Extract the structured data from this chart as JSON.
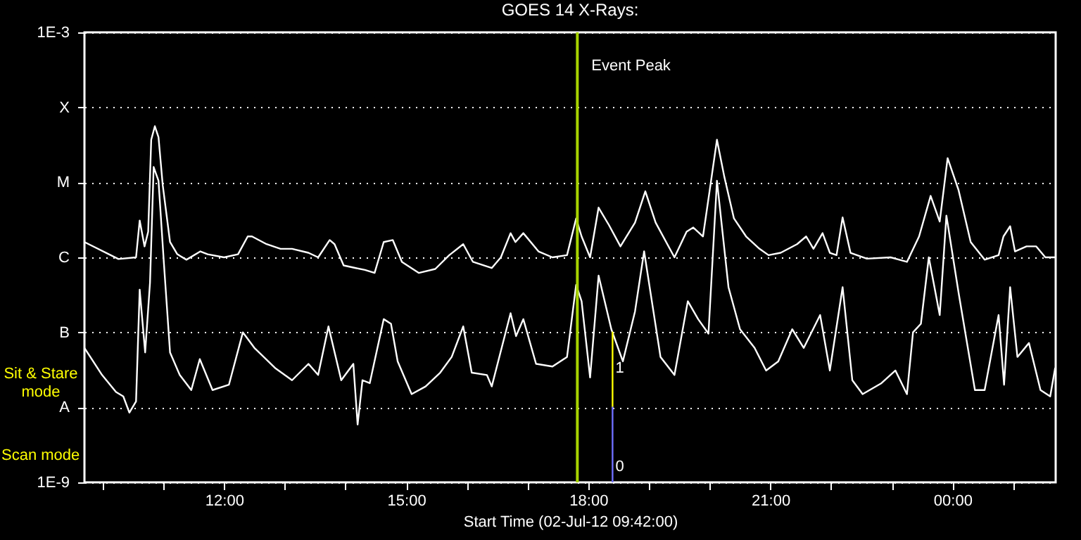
{
  "chart_data": {
    "type": "line",
    "title": "GOES 14 X-Rays:",
    "xlabel": "Start Time (02-Jul-12 09:42:00)",
    "log": true,
    "grid": "y",
    "line_style": "solid",
    "xlim": [
      9.7,
      25.7
    ],
    "xticks": [
      {
        "value": 10,
        "label": null
      },
      {
        "value": 11,
        "label": null
      },
      {
        "value": 12,
        "label": "12:00"
      },
      {
        "value": 13,
        "label": null
      },
      {
        "value": 14,
        "label": null
      },
      {
        "value": 15,
        "label": "15:00"
      },
      {
        "value": 16,
        "label": null
      },
      {
        "value": 17,
        "label": null
      },
      {
        "value": 18,
        "label": "18:00"
      },
      {
        "value": 19,
        "label": null
      },
      {
        "value": 20,
        "label": null
      },
      {
        "value": 21,
        "label": "21:00"
      },
      {
        "value": 22,
        "label": null
      },
      {
        "value": 23,
        "label": null
      },
      {
        "value": 24,
        "label": "00:00"
      },
      {
        "value": 25,
        "label": null
      }
    ],
    "ylim": [
      1e-09,
      0.001
    ],
    "yticks": [
      {
        "value": 1e-09,
        "label": "1E-9"
      },
      {
        "value": 1e-08,
        "label": "A"
      },
      {
        "value": 1e-07,
        "label": "B"
      },
      {
        "value": 1e-06,
        "label": "C"
      },
      {
        "value": 1e-05,
        "label": "M"
      },
      {
        "value": 0.0001,
        "label": "X"
      },
      {
        "value": 0.001,
        "label": "1E-3"
      }
    ],
    "x": [
      9.7,
      10.26,
      10.55,
      10.61,
      10.69,
      10.75,
      10.8,
      10.86,
      10.92,
      10.99,
      11.11,
      11.23,
      11.38,
      11.61,
      11.73,
      12.0,
      12.23,
      12.39,
      12.46,
      12.7,
      12.93,
      13.12,
      13.39,
      13.55,
      13.74,
      13.82,
      13.97,
      14.17,
      14.32,
      14.48,
      14.63,
      14.78,
      14.93,
      15.21,
      15.48,
      15.71,
      15.94,
      16.1,
      16.41,
      16.56,
      16.72,
      16.8,
      16.93,
      17.18,
      17.41,
      17.65,
      17.8,
      17.89,
      18.03,
      18.17,
      18.34,
      18.53,
      18.77,
      18.94,
      19.11,
      19.42,
      19.62,
      19.73,
      19.89,
      20.0,
      20.12,
      20.24,
      20.4,
      20.6,
      20.82,
      20.97,
      21.17,
      21.44,
      21.59,
      21.71,
      21.86,
      21.98,
      22.09,
      22.19,
      22.32,
      22.59,
      22.98,
      23.25,
      23.45,
      23.64,
      23.79,
      23.92,
      24.1,
      24.3,
      24.53,
      24.76,
      24.84,
      24.95,
      25.03,
      25.22,
      25.38,
      25.53,
      25.69
    ],
    "series": [
      {
        "color": "#ffffff",
        "values": [
          1.6e-06,
          9.5e-07,
          1e-06,
          3.1e-06,
          1.4e-06,
          2.2e-06,
          3.7e-05,
          5.6e-05,
          4e-05,
          9.1e-06,
          1.6e-06,
          1.1e-06,
          9.3e-07,
          1.2e-06,
          1.1e-06,
          1e-06,
          1.1e-06,
          1.9e-06,
          1.9e-06,
          1.5e-06,
          1.3e-06,
          1.3e-06,
          1.15e-06,
          1e-06,
          1.7e-06,
          1.5e-06,
          7.8e-07,
          7.2e-07,
          6.8e-07,
          6.2e-07,
          1.6e-06,
          1.7e-06,
          8.7e-07,
          6.2e-07,
          7e-07,
          1.07e-06,
          1.5e-06,
          8.7e-07,
          7.2e-07,
          1e-06,
          2.1e-06,
          1.6e-06,
          2.1e-06,
          1.2e-06,
          1e-06,
          1.07e-06,
          3.3e-06,
          1.9e-06,
          1e-06,
          4.6e-06,
          2.7e-06,
          1.4e-06,
          2.9e-06,
          7.6e-06,
          2.9e-06,
          1e-06,
          2.2e-06,
          2.5e-06,
          1.9e-06,
          7.8e-06,
          3.7e-05,
          1.2e-05,
          3.3e-06,
          1.9e-06,
          1.3e-06,
          1.07e-06,
          1.15e-06,
          1.5e-06,
          1.9e-06,
          1.3e-06,
          2.1e-06,
          1.15e-06,
          1.07e-06,
          3.4e-06,
          1.15e-06,
          9.6e-07,
          1e-06,
          8.7e-07,
          1.9e-06,
          6.6e-06,
          3e-06,
          2.1e-05,
          7.9e-06,
          1.6e-06,
          9.3e-07,
          1.07e-06,
          1.9e-06,
          2.6e-06,
          1.2e-06,
          1.4e-06,
          1.4e-06,
          1e-06,
          1e-06
        ]
      },
      {
        "color": "#ffffff",
        "x": [
          9.7,
          9.99,
          10.22,
          10.34,
          10.44,
          10.55,
          10.61,
          10.7,
          10.78,
          10.84,
          10.92,
          11.01,
          11.11,
          11.27,
          11.46,
          11.6,
          11.81,
          12.08,
          12.31,
          12.5,
          12.85,
          13.12,
          13.39,
          13.55,
          13.72,
          13.93,
          14.13,
          14.2,
          14.28,
          14.4,
          14.63,
          14.75,
          14.86,
          15.09,
          15.32,
          15.56,
          15.75,
          15.94,
          16.08,
          16.33,
          16.41,
          16.72,
          16.81,
          16.93,
          17.14,
          17.41,
          17.65,
          17.8,
          17.89,
          18.03,
          18.17,
          18.38,
          18.57,
          18.77,
          18.92,
          19.19,
          19.42,
          19.64,
          19.81,
          19.98,
          20.12,
          20.31,
          20.5,
          20.74,
          20.93,
          21.13,
          21.36,
          21.55,
          21.82,
          21.98,
          22.19,
          22.35,
          22.52,
          22.83,
          23.06,
          23.25,
          23.35,
          23.48,
          23.61,
          23.79,
          23.9,
          24.1,
          24.37,
          24.53,
          24.76,
          24.85,
          24.95,
          25.07,
          25.26,
          25.45,
          25.61,
          25.69
        ],
        "values": [
          6.2e-08,
          2.7e-08,
          1.6e-08,
          1.4e-08,
          8.5e-09,
          1.2e-08,
          3.7e-07,
          5.4e-08,
          4.6e-07,
          1.6e-05,
          1.05e-05,
          8.1e-07,
          5.4e-08,
          2.7e-08,
          1.7e-08,
          4.4e-08,
          1.7e-08,
          2e-08,
          1e-07,
          6.2e-08,
          3.3e-08,
          2.3e-08,
          3.8e-08,
          2.7e-08,
          1.2e-07,
          2.3e-08,
          3.8e-08,
          5.9e-09,
          2.3e-08,
          2.1e-08,
          1.5e-07,
          1.3e-07,
          4.1e-08,
          1.5e-08,
          1.9e-08,
          2.9e-08,
          4.7e-08,
          1.2e-07,
          2.9e-08,
          2.7e-08,
          1.9e-08,
          1.8e-07,
          8.9e-08,
          1.5e-07,
          3.8e-08,
          3.5e-08,
          4.7e-08,
          4.3e-07,
          2.6e-07,
          2.5e-08,
          5.7e-07,
          1.1e-07,
          4.1e-08,
          1.9e-07,
          1.2e-06,
          4.7e-08,
          2.7e-08,
          2.6e-07,
          1.5e-07,
          9.6e-08,
          1.05e-05,
          4e-07,
          1.1e-07,
          6.2e-08,
          3.1e-08,
          4.1e-08,
          1.1e-07,
          6.2e-08,
          1.7e-07,
          3.1e-08,
          4e-07,
          2.3e-08,
          1.5e-08,
          2.1e-08,
          3.1e-08,
          1.5e-08,
          1e-07,
          1.3e-07,
          1e-06,
          1.7e-07,
          3.6e-06,
          3.4e-07,
          1.7e-08,
          1.7e-08,
          1.7e-07,
          2e-08,
          4e-07,
          4.7e-08,
          7.2e-08,
          1.7e-08,
          1.4e-08,
          3.3e-08
        ]
      },
      {
        "color": "#ffff00",
        "x": [
          18.4,
          18.4
        ],
        "values": [
          1e-07,
          1e-08
        ]
      },
      {
        "color": "#7070ff",
        "x": [
          18.4,
          18.4
        ],
        "values": [
          1e-08,
          1e-09
        ]
      }
    ],
    "ref_lines": [
      {
        "axis": "x",
        "value": 17.82,
        "label": "Event Peak",
        "color": "#a8d400"
      }
    ],
    "annotations": [
      "Sit & Stare mode",
      "Scan mode",
      {
        "text": "1",
        "x": 18.4,
        "y": 3.3e-08
      },
      {
        "text": "0",
        "x": 18.4,
        "y": 1.6e-09
      }
    ]
  }
}
